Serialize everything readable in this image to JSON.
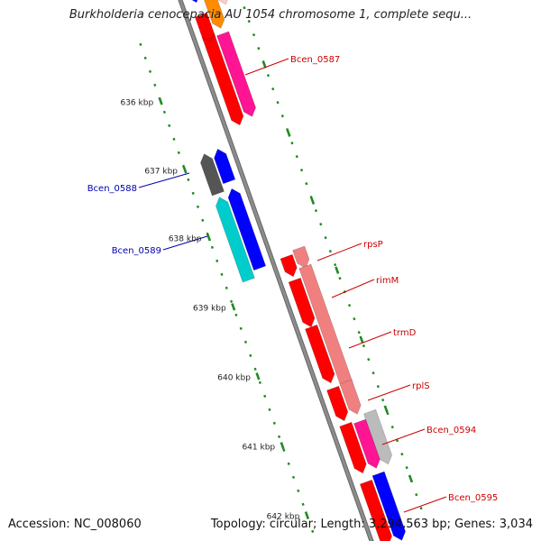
{
  "title": "Burkholderia cenocepacia AU 1054 chromosome 1, complete sequ...",
  "footer": {
    "accession": "Accession: NC_008060",
    "summary": "Topology: circular; Length: 3,294,563 bp; Genes: 3,034"
  },
  "colors": {
    "backbone": "#8c8c8c",
    "tick": "#1f8a1f",
    "label_red": "#cc0000",
    "label_blue": "#0000b4",
    "red": "#ff0000",
    "magenta": "#ff1493",
    "salmon": "#f08080",
    "orange": "#ff8c00",
    "pink": "#ffcccc",
    "blue": "#0000ff",
    "cyan": "#00cccc",
    "dark_gray": "#555555",
    "light_gray": "#bbbbbb",
    "steel_blue": "#4682b4"
  },
  "scale_labels": [
    "636 kbp",
    "637 kbp",
    "638 kbp",
    "639 kbp",
    "640 kbp",
    "641 kbp",
    "642 kbp"
  ],
  "gene_labels": [
    {
      "text": "Bcen_0587",
      "color": "red"
    },
    {
      "text": "Bcen_0588",
      "color": "blue"
    },
    {
      "text": "Bcen_0589",
      "color": "blue"
    },
    {
      "text": "rpsP",
      "color": "red"
    },
    {
      "text": "rimM",
      "color": "red"
    },
    {
      "text": "trmD",
      "color": "red"
    },
    {
      "text": "rplS",
      "color": "red"
    },
    {
      "text": "Bcen_0594",
      "color": "red"
    },
    {
      "text": "Bcen_0595",
      "color": "red"
    }
  ],
  "features": [
    {
      "color": "steel_blue",
      "strand": "forward",
      "lane": 2
    },
    {
      "color": "blue",
      "strand": "forward",
      "lane": 1
    },
    {
      "color": "pink",
      "strand": "forward",
      "lane": 3
    },
    {
      "color": "orange",
      "strand": "forward",
      "lane": 2
    },
    {
      "color": "red",
      "strand": "forward",
      "lane": 1
    },
    {
      "color": "red",
      "strand": "forward",
      "lane": 1
    },
    {
      "color": "magenta",
      "strand": "forward",
      "lane": 2
    },
    {
      "color": "dark_gray",
      "strand": "reverse",
      "lane": 2
    },
    {
      "color": "blue",
      "strand": "reverse",
      "lane": 1
    },
    {
      "color": "cyan",
      "strand": "reverse",
      "lane": 2
    },
    {
      "color": "blue",
      "strand": "reverse",
      "lane": 1
    },
    {
      "color": "red",
      "strand": "forward",
      "lane": 1
    },
    {
      "color": "salmon",
      "strand": "forward",
      "lane": 2
    },
    {
      "color": "red",
      "strand": "forward",
      "lane": 1
    },
    {
      "color": "salmon",
      "strand": "forward",
      "lane": 2
    },
    {
      "color": "red",
      "strand": "forward",
      "lane": 1
    },
    {
      "color": "red",
      "strand": "forward",
      "lane": 1
    },
    {
      "color": "salmon",
      "strand": "forward",
      "lane": 2
    },
    {
      "color": "red",
      "strand": "forward",
      "lane": 1
    },
    {
      "color": "magenta",
      "strand": "forward",
      "lane": 2
    },
    {
      "color": "light_gray",
      "strand": "forward",
      "lane": 3
    },
    {
      "color": "red",
      "strand": "forward",
      "lane": 1
    },
    {
      "color": "blue",
      "strand": "forward",
      "lane": 2
    }
  ]
}
